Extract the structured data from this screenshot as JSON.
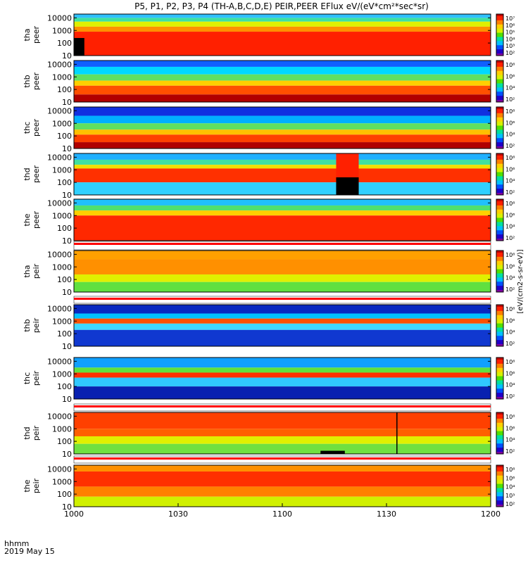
{
  "title": "P5, P1, P2, P3, P4 (TH-A,B,C,D,E) PEIR,PEER EFlux eV/(eV*cm²*sec*sr)",
  "time_axis": {
    "row1_label": "hhmm",
    "row2_label": "2019 May 15",
    "ticks": [
      "1000",
      "1030",
      "1100",
      "1130",
      "1200"
    ]
  },
  "colorbar_label": "[eV/(cm2-s-sr-eV)]",
  "chart_data": [
    {
      "type": "heatmap",
      "probe": "tha",
      "species": "peer",
      "ylabel_probe": "tha",
      "ylabel_species": "peer",
      "y_scale": "log",
      "ylim": [
        10,
        20000
      ],
      "y_ticks": [
        "10000",
        "1000",
        "100",
        "10"
      ],
      "x_range": [
        "10:00",
        "12:00"
      ],
      "colorbar_ticks": [
        "10⁷",
        "10⁶",
        "10⁵",
        "10⁴",
        "10³",
        "10²"
      ]
    },
    {
      "type": "heatmap",
      "probe": "thb",
      "species": "peer",
      "ylabel_probe": "thb",
      "ylabel_species": "peer",
      "y_scale": "log",
      "ylim": [
        10,
        20000
      ],
      "y_ticks": [
        "10000",
        "1000",
        "100",
        "10"
      ],
      "x_range": [
        "10:00",
        "12:00"
      ],
      "colorbar_ticks": [
        "10⁸",
        "10⁶",
        "10⁴",
        "10²"
      ]
    },
    {
      "type": "heatmap",
      "probe": "thc",
      "species": "peer",
      "ylabel_probe": "thc",
      "ylabel_species": "peer",
      "y_scale": "log",
      "ylim": [
        10,
        20000
      ],
      "y_ticks": [
        "10000",
        "1000",
        "100",
        "10"
      ],
      "x_range": [
        "10:00",
        "12:00"
      ],
      "colorbar_ticks": [
        "10⁸",
        "10⁶",
        "10⁴",
        "10²"
      ]
    },
    {
      "type": "heatmap",
      "probe": "thd",
      "species": "peer",
      "ylabel_probe": "thd",
      "ylabel_species": "peer",
      "y_scale": "log",
      "ylim": [
        10,
        20000
      ],
      "y_ticks": [
        "10000",
        "1000",
        "100",
        "10"
      ],
      "x_range": [
        "10:00",
        "12:00"
      ],
      "colorbar_ticks": [
        "10⁸",
        "10⁶",
        "10⁴",
        "10²"
      ]
    },
    {
      "type": "heatmap",
      "probe": "the",
      "species": "peer",
      "ylabel_probe": "the",
      "ylabel_species": "peer",
      "y_scale": "log",
      "ylim": [
        10,
        20000
      ],
      "y_ticks": [
        "10000",
        "1000",
        "100",
        "10"
      ],
      "x_range": [
        "10:00",
        "12:00"
      ],
      "colorbar_ticks": [
        "10⁸",
        "10⁶",
        "10⁴",
        "10²"
      ]
    },
    {
      "type": "heatmap",
      "probe": "tha",
      "species": "peir",
      "ylabel_probe": "tha",
      "ylabel_species": "peir",
      "y_scale": "log",
      "ylim": [
        10,
        20000
      ],
      "y_ticks": [
        "10000",
        "1000",
        "100",
        "10"
      ],
      "x_range": [
        "10:00",
        "12:00"
      ],
      "colorbar_ticks": [
        "10⁸",
        "10⁶",
        "10⁴",
        "10²"
      ]
    },
    {
      "type": "heatmap",
      "probe": "thb",
      "species": "peir",
      "ylabel_probe": "thb",
      "ylabel_species": "peir",
      "y_scale": "log",
      "ylim": [
        10,
        20000
      ],
      "y_ticks": [
        "10000",
        "1000",
        "100",
        "10"
      ],
      "x_range": [
        "10:00",
        "12:00"
      ],
      "colorbar_ticks": [
        "10⁸",
        "10⁶",
        "10⁴",
        "10²"
      ]
    },
    {
      "type": "heatmap",
      "probe": "thc",
      "species": "peir",
      "ylabel_probe": "thc",
      "ylabel_species": "peir",
      "y_scale": "log",
      "ylim": [
        10,
        20000
      ],
      "y_ticks": [
        "10000",
        "1000",
        "100",
        "10"
      ],
      "x_range": [
        "10:00",
        "12:00"
      ],
      "colorbar_ticks": [
        "10⁸",
        "10⁶",
        "10⁴",
        "10²"
      ]
    },
    {
      "type": "heatmap",
      "probe": "thd",
      "species": "peir",
      "ylabel_probe": "thd",
      "ylabel_species": "peir",
      "y_scale": "log",
      "ylim": [
        10,
        20000
      ],
      "y_ticks": [
        "10000",
        "1000",
        "100",
        "10"
      ],
      "x_range": [
        "10:00",
        "12:00"
      ],
      "colorbar_ticks": [
        "10⁸",
        "10⁶",
        "10⁴",
        "10²"
      ]
    },
    {
      "type": "heatmap",
      "probe": "the",
      "species": "peir",
      "ylabel_probe": "the",
      "ylabel_species": "peir",
      "y_scale": "log",
      "ylim": [
        10,
        20000
      ],
      "y_ticks": [
        "10000",
        "1000",
        "100",
        "10"
      ],
      "x_range": [
        "10:00",
        "12:00"
      ],
      "colorbar_ticks": [
        "10⁸",
        "10⁶",
        "10⁴",
        "10³",
        "10²"
      ]
    }
  ]
}
